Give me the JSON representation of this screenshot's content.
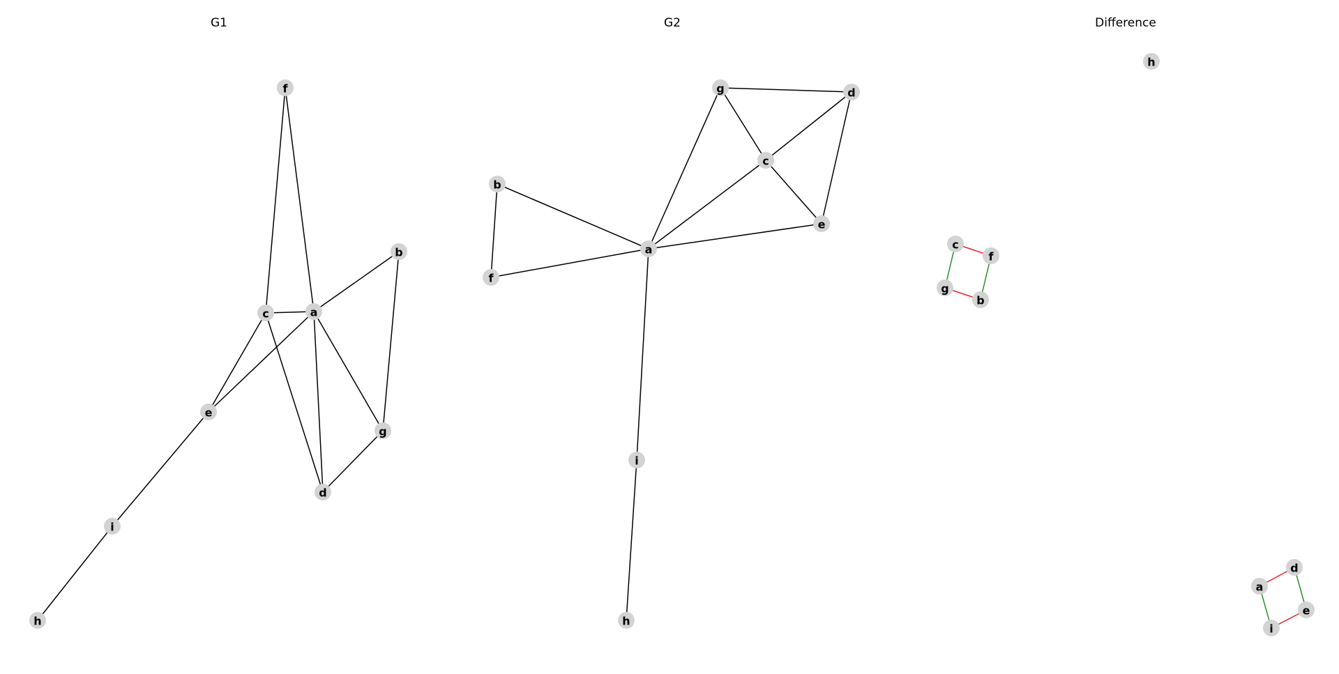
{
  "colors": {
    "background": "#ffffff",
    "node_fill": "#d3d3d3",
    "edge_default": "#000000",
    "edge_added": "#2e8b2e",
    "edge_removed": "#e8202a",
    "label": "#000000"
  },
  "panels": [
    {
      "id": "g1",
      "title": "G1",
      "nodes": [
        {
          "id": "f",
          "label": "f"
        },
        {
          "id": "b",
          "label": "b"
        },
        {
          "id": "c",
          "label": "c"
        },
        {
          "id": "a",
          "label": "a"
        },
        {
          "id": "e",
          "label": "e"
        },
        {
          "id": "g",
          "label": "g"
        },
        {
          "id": "d",
          "label": "d"
        },
        {
          "id": "i",
          "label": "i"
        },
        {
          "id": "h",
          "label": "h"
        }
      ],
      "edges": [
        {
          "source": "f",
          "target": "c",
          "status": "default"
        },
        {
          "source": "f",
          "target": "a",
          "status": "default"
        },
        {
          "source": "b",
          "target": "a",
          "status": "default"
        },
        {
          "source": "b",
          "target": "g",
          "status": "default"
        },
        {
          "source": "c",
          "target": "a",
          "status": "default"
        },
        {
          "source": "c",
          "target": "e",
          "status": "default"
        },
        {
          "source": "c",
          "target": "d",
          "status": "default"
        },
        {
          "source": "a",
          "target": "e",
          "status": "default"
        },
        {
          "source": "a",
          "target": "d",
          "status": "default"
        },
        {
          "source": "a",
          "target": "g",
          "status": "default"
        },
        {
          "source": "g",
          "target": "d",
          "status": "default"
        },
        {
          "source": "e",
          "target": "i",
          "status": "default"
        },
        {
          "source": "i",
          "target": "h",
          "status": "default"
        }
      ]
    },
    {
      "id": "g2",
      "title": "G2",
      "nodes": [
        {
          "id": "g",
          "label": "g"
        },
        {
          "id": "d",
          "label": "d"
        },
        {
          "id": "c",
          "label": "c"
        },
        {
          "id": "b",
          "label": "b"
        },
        {
          "id": "e",
          "label": "e"
        },
        {
          "id": "a",
          "label": "a"
        },
        {
          "id": "f",
          "label": "f"
        },
        {
          "id": "i",
          "label": "i"
        },
        {
          "id": "h",
          "label": "h"
        }
      ],
      "edges": [
        {
          "source": "g",
          "target": "d",
          "status": "default"
        },
        {
          "source": "g",
          "target": "c",
          "status": "default"
        },
        {
          "source": "g",
          "target": "a",
          "status": "default"
        },
        {
          "source": "d",
          "target": "c",
          "status": "default"
        },
        {
          "source": "d",
          "target": "e",
          "status": "default"
        },
        {
          "source": "c",
          "target": "e",
          "status": "default"
        },
        {
          "source": "c",
          "target": "a",
          "status": "default"
        },
        {
          "source": "b",
          "target": "a",
          "status": "default"
        },
        {
          "source": "b",
          "target": "f",
          "status": "default"
        },
        {
          "source": "a",
          "target": "f",
          "status": "default"
        },
        {
          "source": "a",
          "target": "e",
          "status": "default"
        },
        {
          "source": "a",
          "target": "i",
          "status": "default"
        },
        {
          "source": "i",
          "target": "h",
          "status": "default"
        }
      ]
    },
    {
      "id": "diff",
      "title": "Difference",
      "nodes": [
        {
          "id": "h",
          "label": "h"
        },
        {
          "id": "c",
          "label": "c"
        },
        {
          "id": "f",
          "label": "f"
        },
        {
          "id": "g",
          "label": "g"
        },
        {
          "id": "b",
          "label": "b"
        },
        {
          "id": "d",
          "label": "d"
        },
        {
          "id": "a",
          "label": "a"
        },
        {
          "id": "e",
          "label": "e"
        },
        {
          "id": "i",
          "label": "i"
        }
      ],
      "edges": [
        {
          "source": "c",
          "target": "f",
          "status": "removed"
        },
        {
          "source": "c",
          "target": "g",
          "status": "added"
        },
        {
          "source": "f",
          "target": "b",
          "status": "added"
        },
        {
          "source": "g",
          "target": "b",
          "status": "removed"
        },
        {
          "source": "a",
          "target": "d",
          "status": "removed"
        },
        {
          "source": "d",
          "target": "e",
          "status": "added"
        },
        {
          "source": "a",
          "target": "i",
          "status": "added"
        },
        {
          "source": "i",
          "target": "e",
          "status": "removed"
        }
      ]
    }
  ]
}
